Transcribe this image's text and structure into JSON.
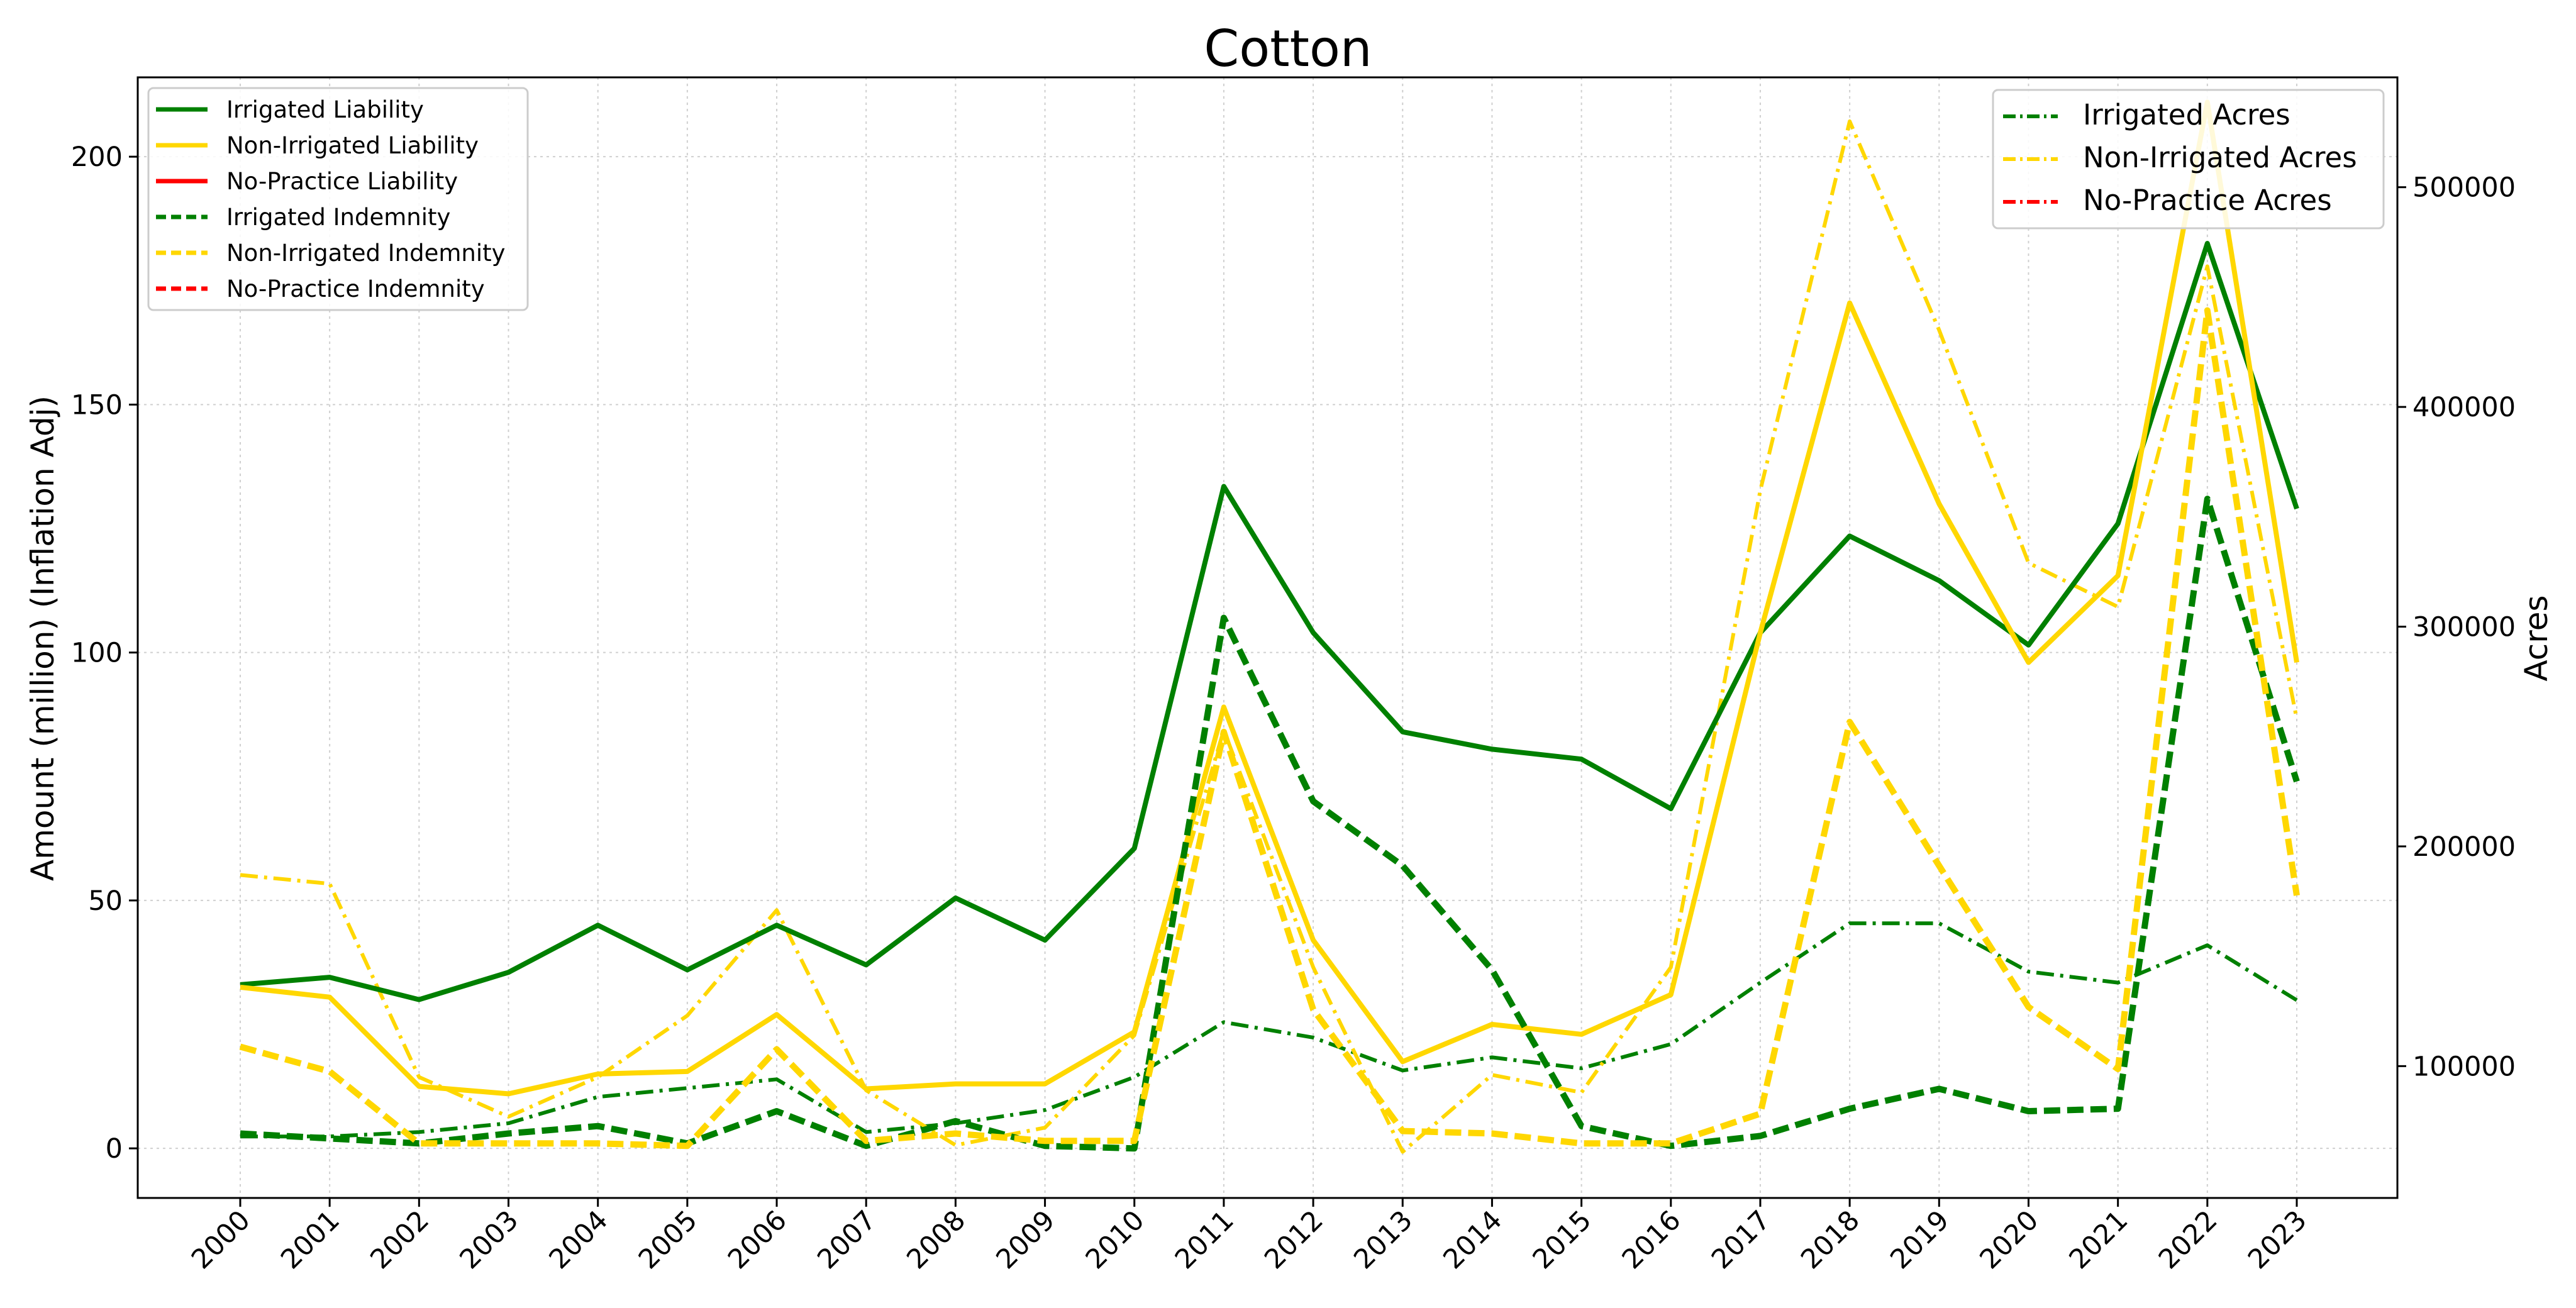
{
  "chart_data": {
    "type": "line",
    "title": "Cotton",
    "xlabel": "",
    "ylabel": "Amount (million) (Inflation Adj)",
    "y2label": "Acres",
    "x": [
      "2000",
      "2001",
      "2002",
      "2003",
      "2004",
      "2005",
      "2006",
      "2007",
      "2008",
      "2009",
      "2010",
      "2011",
      "2012",
      "2013",
      "2014",
      "2015",
      "2016",
      "2017",
      "2018",
      "2019",
      "2020",
      "2021",
      "2022",
      "2023"
    ],
    "ylim": [
      -10,
      216
    ],
    "y_ticks": [
      "0",
      "50",
      "100",
      "150",
      "200"
    ],
    "y2lim": [
      40000,
      550000
    ],
    "y2_ticks": [
      "100000",
      "200000",
      "300000",
      "400000",
      "500000"
    ],
    "grid": true,
    "colors": {
      "irrigated": "#008000",
      "non_irrigated": "#FFD700",
      "no_practice": "#FF0000"
    },
    "series_left": [
      {
        "name": "Irrigated Liability",
        "style": "solid",
        "color_key": "irrigated",
        "values": [
          33,
          34.5,
          30,
          35.5,
          45,
          36,
          45,
          37,
          50.5,
          42,
          60.5,
          133.5,
          104,
          84,
          80.5,
          78.5,
          68.5,
          104,
          123.5,
          114.5,
          101.5,
          126,
          182.5,
          129
        ]
      },
      {
        "name": "Non-Irrigated Liability",
        "style": "solid",
        "color_key": "non_irrigated",
        "values": [
          32.5,
          30.5,
          12.5,
          11,
          15,
          15.5,
          27,
          12,
          13,
          13,
          23.5,
          89,
          42,
          17.5,
          25,
          23,
          31,
          104,
          170.5,
          130,
          98,
          115.5,
          211,
          98
        ]
      },
      {
        "name": "No-Practice Liability",
        "style": "solid",
        "color_key": "no_practice",
        "values": []
      },
      {
        "name": "Irrigated Indemnity",
        "style": "dashed",
        "color_key": "irrigated",
        "values": [
          3,
          2,
          1,
          3,
          4.5,
          1,
          7.5,
          0.5,
          5.5,
          0.5,
          0,
          107,
          70,
          57,
          36,
          4.5,
          0.5,
          2.5,
          8,
          12,
          7.5,
          8,
          131,
          74
        ]
      },
      {
        "name": "Non-Irrigated Indemnity",
        "style": "dashed",
        "color_key": "non_irrigated",
        "values": [
          20.5,
          15.5,
          1,
          1,
          1,
          0.5,
          20,
          1.5,
          3,
          1.5,
          1.5,
          84,
          28,
          3.5,
          3,
          1,
          1,
          7,
          86,
          57,
          28.5,
          16,
          169,
          51
        ]
      },
      {
        "name": "No-Practice Indemnity",
        "style": "dashed",
        "color_key": "no_practice",
        "values": []
      }
    ],
    "series_right": [
      {
        "name": "Irrigated Acres",
        "style": "dashdot",
        "color_key": "irrigated",
        "values": [
          68000,
          68000,
          70000,
          74000,
          86000,
          90000,
          94000,
          70000,
          74000,
          80000,
          95000,
          120000,
          113000,
          98000,
          104000,
          99000,
          110000,
          138000,
          165000,
          165000,
          143000,
          138000,
          155000,
          130000
        ]
      },
      {
        "name": "Non-Irrigated Acres",
        "style": "dashdot",
        "color_key": "non_irrigated",
        "values": [
          187000,
          183000,
          95000,
          77000,
          95000,
          123000,
          171000,
          89000,
          64000,
          72000,
          114000,
          253000,
          145000,
          61000,
          96000,
          88000,
          145000,
          362000,
          530000,
          435000,
          329000,
          309000,
          464000,
          258000
        ]
      },
      {
        "name": "No-Practice Acres",
        "style": "dashdot",
        "color_key": "no_practice",
        "values": []
      }
    ],
    "legend_left": {
      "placement": "upper-left"
    },
    "legend_right": {
      "placement": "upper-right"
    }
  }
}
